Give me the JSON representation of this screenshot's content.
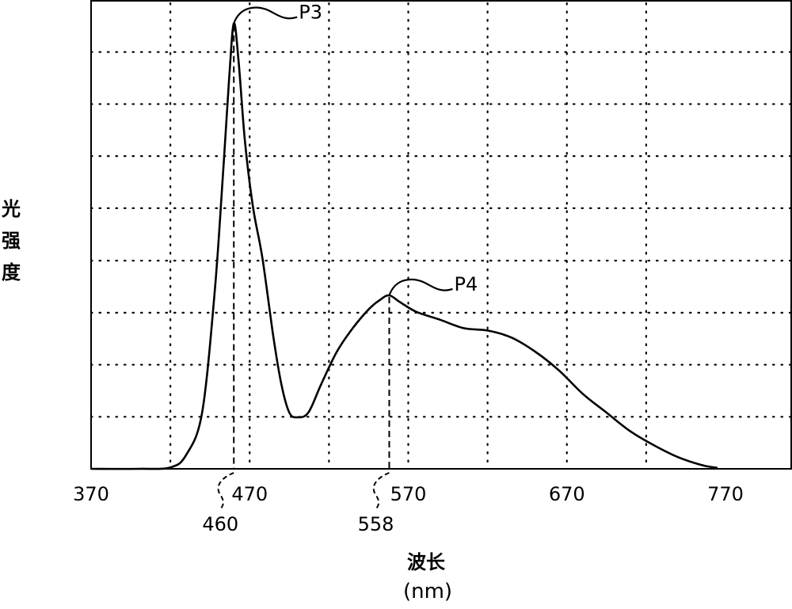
{
  "chart_data": {
    "type": "line",
    "title": "",
    "xlabel": "波长",
    "xunit": "(nm)",
    "ylabel": "光强度",
    "xlim": [
      370,
      770
    ],
    "ylim": [
      0,
      1
    ],
    "x_ticks": [
      "370",
      "470",
      "570",
      "670",
      "770"
    ],
    "grid": true,
    "grid_style": "dotted",
    "y_grid_levels": [
      0.111,
      0.222,
      0.333,
      0.444,
      0.556,
      0.667,
      0.778,
      0.889
    ],
    "x_grid_values": [
      420,
      470,
      520,
      570,
      620,
      670,
      720
    ],
    "series": [
      {
        "x": [
          370,
          400,
          420,
          430,
          440,
          448,
          453,
          457,
          460,
          463,
          467,
          472,
          478,
          485,
          490,
          495,
          500,
          507,
          515,
          525,
          535,
          545,
          552,
          558,
          565,
          575,
          590,
          605,
          620,
          635,
          650,
          665,
          680,
          695,
          710,
          725,
          740,
          755,
          765
        ],
        "y": [
          0,
          0,
          0.003,
          0.03,
          0.12,
          0.38,
          0.62,
          0.83,
          0.95,
          0.87,
          0.7,
          0.56,
          0.45,
          0.28,
          0.18,
          0.12,
          0.11,
          0.12,
          0.18,
          0.25,
          0.3,
          0.34,
          0.36,
          0.37,
          0.355,
          0.335,
          0.318,
          0.3,
          0.295,
          0.28,
          0.25,
          0.21,
          0.16,
          0.12,
          0.08,
          0.05,
          0.025,
          0.008,
          0.002
        ],
        "color": "#000000"
      }
    ],
    "annotations": [
      {
        "label": "P3",
        "x": 460,
        "y": 0.95
      },
      {
        "label": "P4",
        "x": 558,
        "y": 0.37
      }
    ],
    "markers": [
      {
        "x": 460,
        "label": "460"
      },
      {
        "x": 558,
        "label": "558"
      }
    ]
  }
}
